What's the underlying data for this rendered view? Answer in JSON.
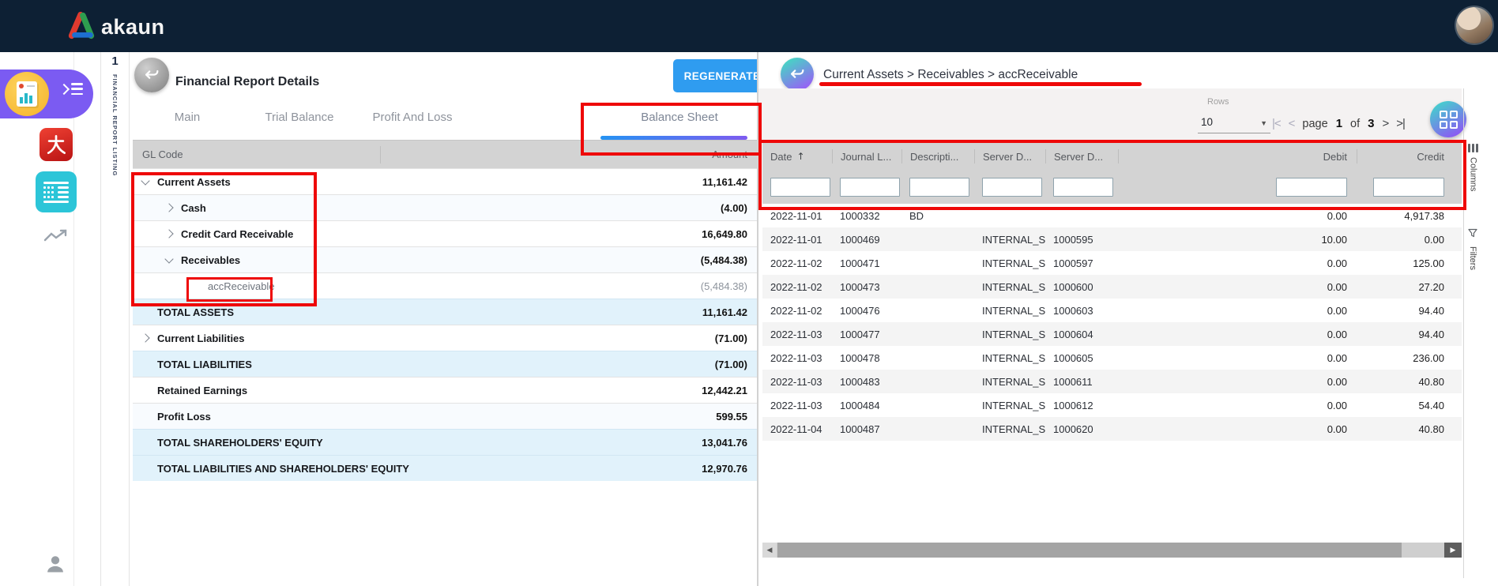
{
  "topbar": {
    "logo_text": "akaun"
  },
  "workspace_tab": {
    "index": "1",
    "label": "FINANCIAL REPORT LISTING"
  },
  "report_panel": {
    "title": "Financial Report Details",
    "regenerate_label": "REGENERATE",
    "tabs": [
      {
        "label": "Main",
        "active": false
      },
      {
        "label": "Trial Balance",
        "active": false
      },
      {
        "label": "Profit And Loss",
        "active": false
      },
      {
        "label": "Balance Sheet",
        "active": true
      }
    ],
    "table": {
      "header": {
        "gl_code": "GL Code",
        "amount": "Amount"
      },
      "rows": [
        {
          "label": "Current Assets",
          "amount": "11,161.42",
          "level": 0,
          "chevron": "down"
        },
        {
          "label": "Cash",
          "amount": "(4.00)",
          "level": 1,
          "chevron": "right"
        },
        {
          "label": "Credit Card Receivable",
          "amount": "16,649.80",
          "level": 1,
          "chevron": "right"
        },
        {
          "label": "Receivables",
          "amount": "(5,484.38)",
          "level": 1,
          "chevron": "down"
        },
        {
          "label": "accReceivable",
          "amount": "(5,484.38)",
          "level": 2,
          "muted": true
        },
        {
          "label": "TOTAL ASSETS",
          "amount": "11,161.42",
          "level": 0,
          "total": true
        },
        {
          "label": "Current Liabilities",
          "amount": "(71.00)",
          "level": 0,
          "chevron": "right"
        },
        {
          "label": "TOTAL LIABILITIES",
          "amount": "(71.00)",
          "level": 0,
          "total": true
        },
        {
          "label": "Retained Earnings",
          "amount": "12,442.21",
          "level": 0
        },
        {
          "label": "Profit Loss",
          "amount": "599.55",
          "level": 0
        },
        {
          "label": "TOTAL SHAREHOLDERS' EQUITY",
          "amount": "13,041.76",
          "level": 0,
          "total": true
        },
        {
          "label": "TOTAL LIABILITIES AND SHAREHOLDERS' EQUITY",
          "amount": "12,970.76",
          "level": 0,
          "total": true
        }
      ]
    }
  },
  "detail_panel": {
    "breadcrumb": "Current Assets > Receivables > accReceivable",
    "toolbar": {
      "rows_label": "Rows",
      "rows_value": "10",
      "dropdown_icon": "▼",
      "pager": {
        "first": "|<",
        "prev": "<",
        "page_word": "page",
        "page": "1",
        "of_word": "of",
        "total": "3",
        "next": ">",
        "last": ">|"
      }
    },
    "grid": {
      "sort_icon": "↑",
      "columns": [
        {
          "label": "Date",
          "sort": "asc"
        },
        {
          "label": "Journal L..."
        },
        {
          "label": "Descripti..."
        },
        {
          "label": "Server D..."
        },
        {
          "label": "Server D..."
        },
        {
          "label": "Debit",
          "align": "right"
        },
        {
          "label": "Credit",
          "align": "right"
        }
      ],
      "rows": [
        [
          "2022-11-01",
          "1000332",
          "BD",
          "",
          "",
          "0.00",
          "4,917.38"
        ],
        [
          "2022-11-01",
          "1000469",
          "",
          "INTERNAL_S...",
          "1000595",
          "10.00",
          "0.00"
        ],
        [
          "2022-11-02",
          "1000471",
          "",
          "INTERNAL_S...",
          "1000597",
          "0.00",
          "125.00"
        ],
        [
          "2022-11-02",
          "1000473",
          "",
          "INTERNAL_S...",
          "1000600",
          "0.00",
          "27.20"
        ],
        [
          "2022-11-02",
          "1000476",
          "",
          "INTERNAL_S...",
          "1000603",
          "0.00",
          "94.40"
        ],
        [
          "2022-11-03",
          "1000477",
          "",
          "INTERNAL_S...",
          "1000604",
          "0.00",
          "94.40"
        ],
        [
          "2022-11-03",
          "1000478",
          "",
          "INTERNAL_S...",
          "1000605",
          "0.00",
          "236.00"
        ],
        [
          "2022-11-03",
          "1000483",
          "",
          "INTERNAL_S...",
          "1000611",
          "0.00",
          "40.80"
        ],
        [
          "2022-11-03",
          "1000484",
          "",
          "INTERNAL_S...",
          "1000612",
          "0.00",
          "54.40"
        ],
        [
          "2022-11-04",
          "1000487",
          "",
          "INTERNAL_S...",
          "1000620",
          "0.00",
          "40.80"
        ]
      ]
    },
    "side_tools": {
      "columns_label": "Columns",
      "filters_label": "Filters"
    },
    "scrollbar": {
      "left_icon": "◀",
      "right_icon": "▶"
    }
  },
  "colors": {
    "topbar_navy": "#0d2034",
    "accent_blue": "#2f9cf0",
    "annotation_red": "#ee0808",
    "total_row_blue": "#e1f2fb",
    "gradient_teal": "#3fe0c0",
    "gradient_purple": "#9a5cf7",
    "rail_purple": "#7b5bf2",
    "rail_teal": "#2cc5d8",
    "rail_red": "#d42a1e",
    "header_gray": "#d3d3d3"
  }
}
